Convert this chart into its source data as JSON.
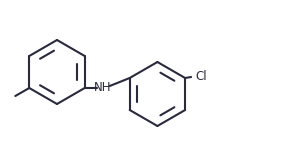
{
  "background_color": "#ffffff",
  "line_color": "#2a2a3e",
  "line_width": 1.5,
  "font_size_nh": 8.5,
  "font_size_cl": 8.5,
  "figsize": [
    2.91,
    1.47
  ],
  "dpi": 100,
  "NH_label": "NH",
  "Cl_label": "Cl"
}
